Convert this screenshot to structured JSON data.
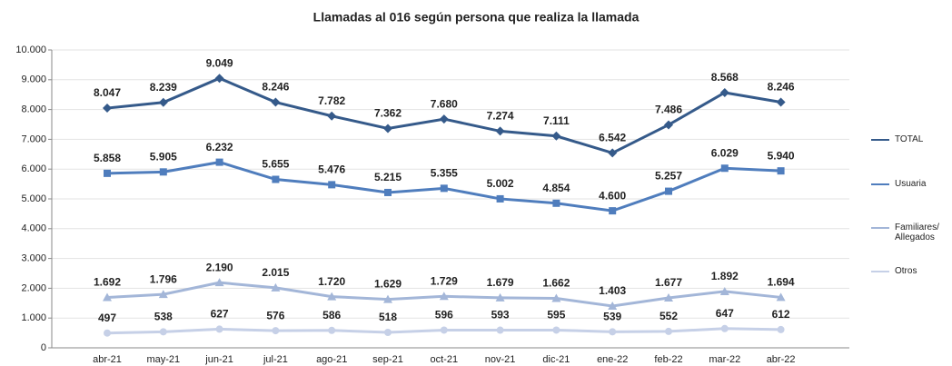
{
  "chart_data": {
    "type": "line",
    "title": "Llamadas al 016 según persona que realiza la llamada",
    "categories": [
      "abr-21",
      "may-21",
      "jun-21",
      "jul-21",
      "ago-21",
      "sep-21",
      "oct-21",
      "nov-21",
      "dic-21",
      "ene-22",
      "feb-22",
      "mar-22",
      "abr-22"
    ],
    "series": [
      {
        "name": "TOTAL",
        "color": "#355a8a",
        "marker": "diamond",
        "values": [
          8047,
          8239,
          9049,
          8246,
          7782,
          7362,
          7680,
          7274,
          7111,
          6542,
          7486,
          8568,
          8246
        ],
        "value_labels": [
          "8.047",
          "8.239",
          "9.049",
          "8.246",
          "7.782",
          "7.362",
          "7.680",
          "7.274",
          "7.111",
          "6.542",
          "7.486",
          "8.568",
          "8.246"
        ]
      },
      {
        "name": "Usuaria",
        "color": "#4f7dbd",
        "marker": "square",
        "values": [
          5858,
          5905,
          6232,
          5655,
          5476,
          5215,
          5355,
          5002,
          4854,
          4600,
          5257,
          6029,
          5940
        ],
        "value_labels": [
          "5.858",
          "5.905",
          "6.232",
          "5.655",
          "5.476",
          "5.215",
          "5.355",
          "5.002",
          "4.854",
          "4.600",
          "5.257",
          "6.029",
          "5.940"
        ]
      },
      {
        "name": "Familiares/ Allegados",
        "color": "#a3b6d8",
        "marker": "triangle",
        "values": [
          1692,
          1796,
          2190,
          2015,
          1720,
          1629,
          1729,
          1679,
          1662,
          1403,
          1677,
          1892,
          1694
        ],
        "value_labels": [
          "1.692",
          "1.796",
          "2.190",
          "2.015",
          "1.720",
          "1.629",
          "1.729",
          "1.679",
          "1.662",
          "1.403",
          "1.677",
          "1.892",
          "1.694"
        ]
      },
      {
        "name": "Otros",
        "color": "#c6d0e7",
        "marker": "circle",
        "values": [
          497,
          538,
          627,
          576,
          586,
          518,
          596,
          593,
          595,
          539,
          552,
          647,
          612
        ],
        "value_labels": [
          "497",
          "538",
          "627",
          "576",
          "586",
          "518",
          "596",
          "593",
          "595",
          "539",
          "552",
          "647",
          "612"
        ]
      }
    ],
    "ylim": [
      0,
      10000
    ],
    "yticks": [
      0,
      {
        "value": 1000,
        "label": "1.000"
      },
      {
        "value": 2000,
        "label": "2.000"
      },
      {
        "value": 3000,
        "label": "3.000"
      },
      {
        "value": 4000,
        "label": "4.000"
      },
      {
        "value": 5000,
        "label": "5.000"
      },
      {
        "value": 6000,
        "label": "6.000"
      },
      {
        "value": 7000,
        "label": "7.000"
      },
      {
        "value": 8000,
        "label": "8.000"
      },
      {
        "value": 9000,
        "label": "9.000"
      },
      {
        "value": 10000,
        "label": "10.000"
      }
    ],
    "grid": true,
    "legend": "right"
  }
}
